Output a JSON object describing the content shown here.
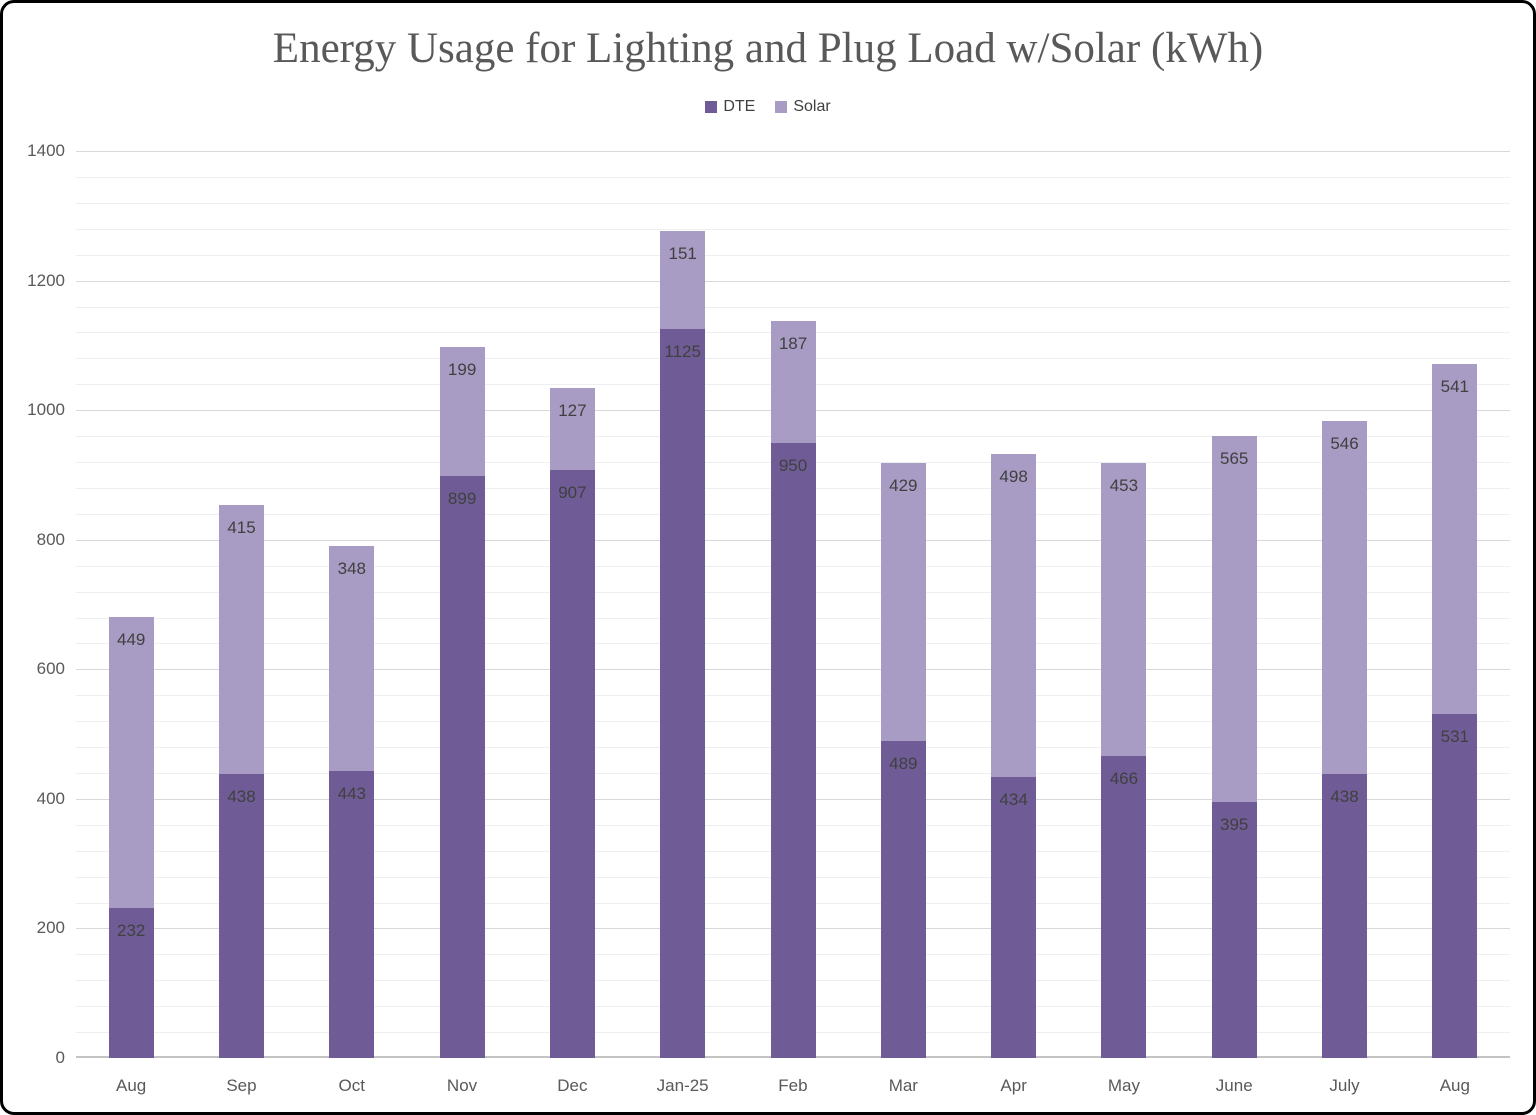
{
  "chart_data": {
    "type": "bar",
    "stacked": true,
    "title": "Energy Usage for Lighting and Plug Load w/Solar (kWh)",
    "categories": [
      "Aug",
      "Sep",
      "Oct",
      "Nov",
      "Dec",
      "Jan-25",
      "Feb",
      "Mar",
      "Apr",
      "May",
      "June",
      "July",
      "Aug"
    ],
    "series": [
      {
        "name": "DTE",
        "color": "#6F5B95",
        "values": [
          232,
          438,
          443,
          899,
          907,
          1125,
          950,
          489,
          434,
          466,
          395,
          438,
          531
        ]
      },
      {
        "name": "Solar",
        "color": "#A89BC4",
        "values": [
          449,
          415,
          348,
          199,
          127,
          151,
          187,
          429,
          498,
          453,
          565,
          546,
          541
        ]
      }
    ],
    "ylabel": "",
    "xlabel": "",
    "ylim": [
      0,
      1400
    ],
    "y_major_unit": 200,
    "y_minor_unit": 40,
    "grid": true,
    "legend_position": "top-center",
    "data_labels_position": "inside-end",
    "colors": {
      "title_text": "#595959",
      "axis_text": "#595959",
      "data_label_text": "#404040",
      "major_gridline": "#D9D9D9",
      "minor_gridline": "#EFEFEF",
      "axis_line": "#C4C4C4",
      "background": "#FFFFFF",
      "frame_border": "#000000"
    }
  }
}
